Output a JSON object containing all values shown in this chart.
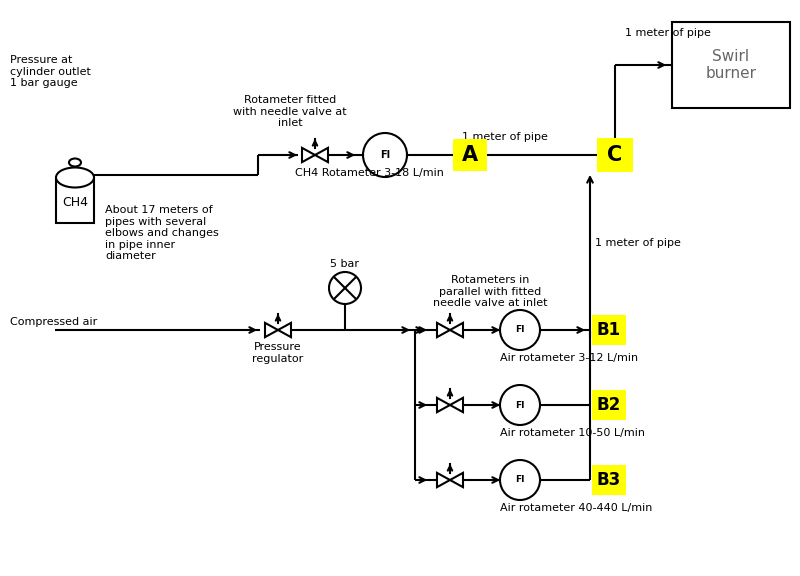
{
  "bg_color": "#ffffff",
  "line_color": "#000000",
  "line_width": 1.5,
  "yellow": "#ffff00",
  "label_A": "A",
  "label_B1": "B1",
  "label_B2": "B2",
  "label_B3": "B3",
  "label_C": "C",
  "text_swirl": "Swirl\nburner",
  "text_pressure_at": "Pressure at\ncylinder outlet\n1 bar gauge",
  "text_17m": "About 17 meters of\npipes with several\nelbows and changes\nin pipe inner\ndiameter",
  "text_rot_ch4_label": "Rotameter fitted\nwith needle valve at\ninlet",
  "text_ch4_rotameter": "CH4 Rotameter 3-18 L/min",
  "text_compressed_air": "Compressed air",
  "text_5bar": "5 bar",
  "text_pressure_reg": "Pressure\nregulator",
  "text_rot_parallel": "Rotameters in\nparallel with fitted\nneedle valve at inlet",
  "text_air_b1": "Air rotameter 3-12 L/min",
  "text_air_b2": "Air rotameter 10-50 L/min",
  "text_air_b3": "Air rotameter 40-440 L/min",
  "text_1m_top": "1 meter of pipe",
  "text_1m_ch4": "1 meter of pipe",
  "text_1m_air": "1 meter of pipe",
  "text_ch4": "CH4",
  "gray_text": "#666666"
}
